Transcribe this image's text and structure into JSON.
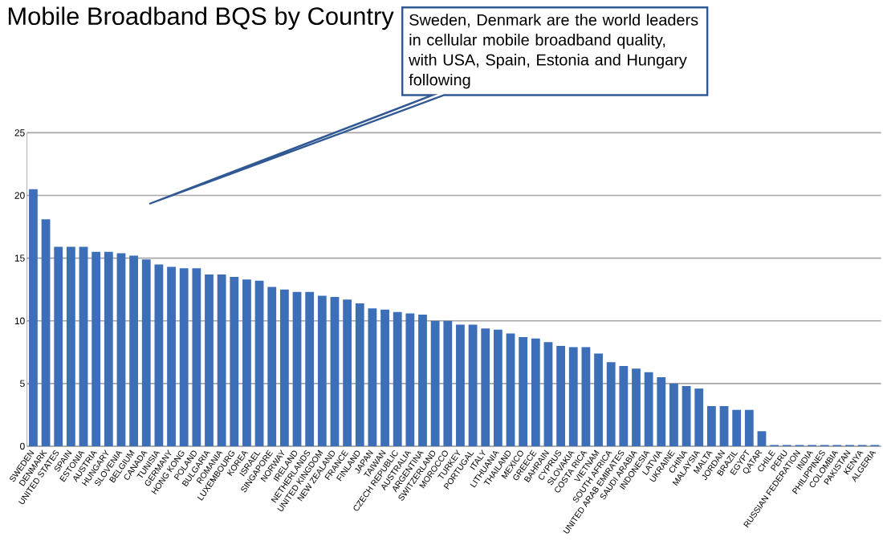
{
  "chart_data": {
    "type": "bar",
    "title": "Mobile Broadband BQS by Country",
    "categories": [
      "SWEDEN",
      "DENMARK",
      "UNITED STATES",
      "SPAIN",
      "ESTONIA",
      "AUSTRIA",
      "HUNGARY",
      "SLOVENIA",
      "BELGIUM",
      "CANADA",
      "TUNISIA",
      "GERMANY",
      "HONG KONG",
      "POLAND",
      "BULGARIA",
      "ROMANIA",
      "LUXEMBOURG",
      "KOREA",
      "ISRAEL",
      "SINGAPORE",
      "NORWAY",
      "IRELAND",
      "NETHERLANDS",
      "UNITED KINGDOM",
      "NEW ZEALAND",
      "FRANCE",
      "FINLAND",
      "JAPAN",
      "TAIWAN",
      "CZECH REPUBLIC",
      "AUSTRALIA",
      "ARGENTINA",
      "SWITZERLAND",
      "MOROCCO",
      "TURKEY",
      "PORTUGAL",
      "ITALY",
      "LITHUANIA",
      "THAILAND",
      "MEXICO",
      "GREECE",
      "BAHRAIN",
      "CYPRUS",
      "SLOVAKIA",
      "COSTA RICA",
      "VIETNAM",
      "SOUTH AFRICA",
      "UNITED ARAB EMIRATES",
      "SAUDI ARABIA",
      "INDONESIA",
      "LATVIA",
      "UKRAINE",
      "CHINA",
      "MALAYSIA",
      "MALTA",
      "JORDAN",
      "BRAZIL",
      "EGYPT",
      "QATAR",
      "CHILE",
      "PERU",
      "RUSSIAN FEDERATION",
      "INDIA",
      "PHILIPPINES",
      "COLOMBIA",
      "PAKISTAN",
      "KENYA",
      "ALGERIA"
    ],
    "values": [
      20.5,
      18.1,
      15.9,
      15.9,
      15.9,
      15.5,
      15.5,
      15.4,
      15.2,
      14.9,
      14.5,
      14.3,
      14.2,
      14.2,
      13.7,
      13.7,
      13.5,
      13.3,
      13.2,
      12.7,
      12.5,
      12.3,
      12.3,
      12.0,
      11.9,
      11.7,
      11.4,
      11.0,
      10.9,
      10.7,
      10.6,
      10.5,
      10.0,
      10.0,
      9.7,
      9.7,
      9.4,
      9.3,
      9.0,
      8.7,
      8.6,
      8.3,
      8.0,
      7.9,
      7.9,
      7.4,
      6.7,
      6.4,
      6.2,
      5.9,
      5.5,
      5.0,
      4.8,
      4.6,
      3.2,
      3.2,
      2.9,
      2.9,
      1.2,
      0.1,
      0.1,
      0.1,
      0.1,
      0.1,
      0.1,
      0.1,
      0.1,
      0.1
    ],
    "color": "#3c6fb8",
    "ylim": [
      0,
      25
    ],
    "yticks": [
      0,
      5,
      10,
      15,
      20,
      25
    ],
    "grid": "y",
    "annotations": [
      "Sweden, Denmark are the world leaders in cellular mobile broadband quality, with USA, Spain, Estonia and Hungary following"
    ]
  }
}
